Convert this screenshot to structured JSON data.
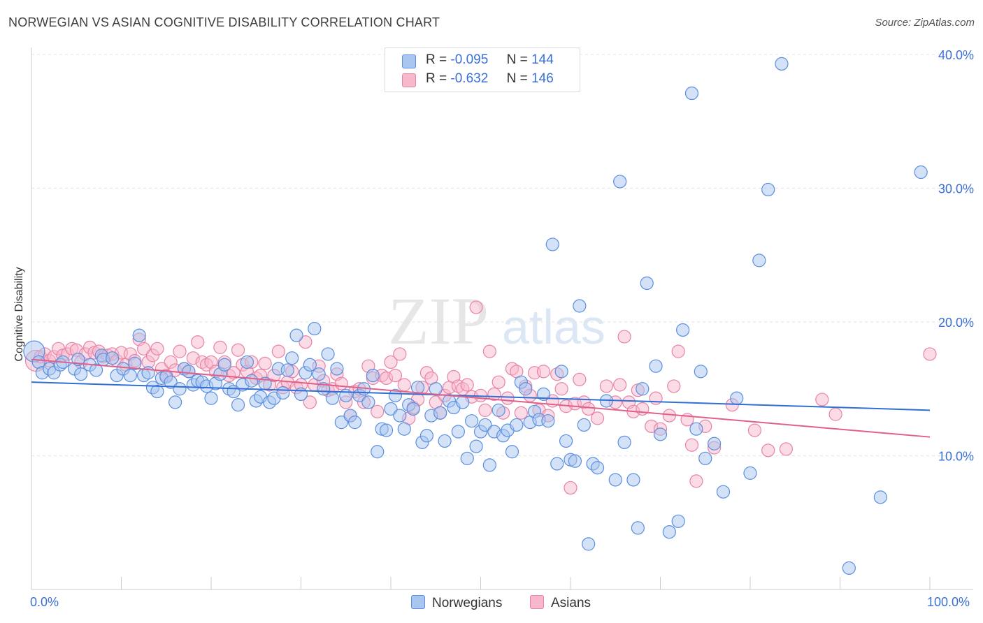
{
  "title": "NORWEGIAN VS ASIAN COGNITIVE DISABILITY CORRELATION CHART",
  "source": "Source: ZipAtlas.com",
  "legend": {
    "norwegians": {
      "r_label": "R =",
      "r_value": "-0.095",
      "n_label": "N =",
      "n_value": "144"
    },
    "asians": {
      "r_label": "R =",
      "r_value": "-0.632",
      "n_label": "N =",
      "n_value": "146"
    }
  },
  "bottom_legend": {
    "norwegians": "Norwegians",
    "asians": "Asians"
  },
  "x_tick_left": "0.0%",
  "x_tick_right": "100.0%",
  "watermark": {
    "zip": "ZIP",
    "atlas": "atlas"
  },
  "chart_data": {
    "type": "scatter",
    "title": "NORWEGIAN VS ASIAN COGNITIVE DISABILITY CORRELATION CHART",
    "xlabel": "",
    "ylabel": "Cognitive Disability",
    "xlim": [
      0,
      100
    ],
    "ylim": [
      0,
      40
    ],
    "y_ticks": [
      {
        "value": 10,
        "label": "10.0%"
      },
      {
        "value": 20,
        "label": "20.0%"
      },
      {
        "value": 30,
        "label": "30.0%"
      },
      {
        "value": 40,
        "label": "40.0%"
      }
    ],
    "grid": true,
    "legend_position": "top-center",
    "colors": {
      "norwegians_fill": "#a8c6f0",
      "norwegians_stroke": "#5b8ee0",
      "norwegians_line": "#2f6fd6",
      "asians_fill": "#f7b8cc",
      "asians_stroke": "#e883a5",
      "asians_line": "#e0608a"
    },
    "series": [
      {
        "name": "Norwegians",
        "trend": {
          "x": [
            0,
            100
          ],
          "y": [
            15.5,
            13.4
          ]
        },
        "points": [
          [
            0.3,
            17.8
          ],
          [
            0.8,
            17.0
          ],
          [
            1.2,
            16.2
          ],
          [
            2.0,
            16.5
          ],
          [
            2.5,
            16.2
          ],
          [
            3.2,
            16.8
          ],
          [
            3.5,
            17.0
          ],
          [
            4.8,
            16.5
          ],
          [
            5.2,
            17.2
          ],
          [
            5.5,
            16.1
          ],
          [
            6.5,
            16.8
          ],
          [
            7.2,
            16.4
          ],
          [
            7.8,
            17.5
          ],
          [
            8.0,
            17.2
          ],
          [
            9.0,
            17.3
          ],
          [
            9.5,
            16.0
          ],
          [
            10.2,
            16.5
          ],
          [
            11.0,
            16.0
          ],
          [
            11.5,
            16.9
          ],
          [
            12.0,
            19.0
          ],
          [
            12.5,
            16.0
          ],
          [
            13.0,
            16.2
          ],
          [
            13.5,
            15.1
          ],
          [
            14.0,
            14.8
          ],
          [
            14.5,
            15.8
          ],
          [
            15.0,
            15.9
          ],
          [
            15.5,
            15.5
          ],
          [
            16.0,
            14.0
          ],
          [
            16.5,
            15.0
          ],
          [
            17.0,
            16.5
          ],
          [
            17.5,
            16.3
          ],
          [
            18.0,
            15.3
          ],
          [
            18.5,
            15.6
          ],
          [
            19.0,
            15.5
          ],
          [
            19.5,
            15.2
          ],
          [
            20.0,
            14.3
          ],
          [
            20.5,
            15.4
          ],
          [
            21.0,
            16.1
          ],
          [
            21.5,
            16.8
          ],
          [
            22.0,
            15.0
          ],
          [
            22.5,
            14.8
          ],
          [
            23.0,
            13.8
          ],
          [
            23.5,
            15.3
          ],
          [
            24.0,
            17.0
          ],
          [
            24.5,
            15.6
          ],
          [
            25.0,
            14.1
          ],
          [
            25.5,
            14.4
          ],
          [
            26.0,
            15.4
          ],
          [
            26.5,
            14.0
          ],
          [
            27.0,
            14.3
          ],
          [
            27.5,
            16.5
          ],
          [
            28.0,
            14.7
          ],
          [
            28.5,
            16.4
          ],
          [
            29.0,
            17.3
          ],
          [
            29.5,
            19.0
          ],
          [
            30.0,
            14.6
          ],
          [
            30.5,
            16.2
          ],
          [
            31.0,
            16.8
          ],
          [
            31.5,
            19.5
          ],
          [
            32.0,
            16.1
          ],
          [
            32.5,
            15.0
          ],
          [
            33.0,
            17.6
          ],
          [
            33.5,
            14.3
          ],
          [
            34.0,
            16.5
          ],
          [
            34.5,
            12.5
          ],
          [
            35.0,
            14.5
          ],
          [
            35.5,
            13.0
          ],
          [
            36.0,
            12.5
          ],
          [
            36.5,
            14.5
          ],
          [
            37.0,
            15.0
          ],
          [
            37.5,
            14.0
          ],
          [
            38.0,
            16.0
          ],
          [
            38.5,
            10.3
          ],
          [
            39.0,
            12.0
          ],
          [
            39.5,
            11.9
          ],
          [
            40.0,
            13.5
          ],
          [
            40.5,
            14.5
          ],
          [
            41.0,
            13.0
          ],
          [
            41.5,
            12.0
          ],
          [
            42.0,
            13.8
          ],
          [
            42.5,
            13.5
          ],
          [
            43.0,
            15.1
          ],
          [
            43.5,
            11.0
          ],
          [
            44.0,
            11.5
          ],
          [
            44.5,
            13.0
          ],
          [
            45.0,
            15.0
          ],
          [
            45.5,
            13.2
          ],
          [
            46.0,
            11.1
          ],
          [
            46.5,
            14.1
          ],
          [
            47.0,
            13.6
          ],
          [
            47.5,
            11.8
          ],
          [
            48.0,
            14.0
          ],
          [
            48.5,
            9.8
          ],
          [
            49.0,
            12.6
          ],
          [
            49.5,
            10.7
          ],
          [
            50.0,
            11.8
          ],
          [
            50.5,
            12.3
          ],
          [
            51.0,
            9.3
          ],
          [
            51.5,
            11.8
          ],
          [
            52.0,
            13.4
          ],
          [
            52.5,
            11.5
          ],
          [
            53.0,
            11.9
          ],
          [
            53.5,
            10.3
          ],
          [
            54.0,
            12.3
          ],
          [
            54.5,
            15.5
          ],
          [
            55.0,
            15.0
          ],
          [
            55.5,
            12.5
          ],
          [
            56.0,
            13.3
          ],
          [
            56.5,
            12.7
          ],
          [
            57.0,
            14.6
          ],
          [
            57.5,
            12.6
          ],
          [
            58.0,
            25.8
          ],
          [
            58.5,
            9.4
          ],
          [
            59.0,
            16.3
          ],
          [
            59.5,
            11.1
          ],
          [
            60.0,
            9.7
          ],
          [
            60.5,
            9.6
          ],
          [
            61.0,
            21.2
          ],
          [
            61.5,
            12.3
          ],
          [
            62.0,
            3.4
          ],
          [
            62.5,
            9.4
          ],
          [
            63.0,
            9.1
          ],
          [
            64.0,
            14.1
          ],
          [
            65.0,
            8.2
          ],
          [
            65.5,
            30.5
          ],
          [
            66.0,
            11.0
          ],
          [
            67.0,
            8.2
          ],
          [
            67.5,
            4.6
          ],
          [
            68.0,
            15.0
          ],
          [
            68.5,
            22.9
          ],
          [
            69.5,
            16.7
          ],
          [
            70.0,
            11.6
          ],
          [
            71.0,
            4.3
          ],
          [
            72.0,
            5.1
          ],
          [
            72.5,
            19.4
          ],
          [
            73.5,
            37.1
          ],
          [
            74.0,
            12.0
          ],
          [
            74.5,
            16.3
          ],
          [
            75.0,
            9.8
          ],
          [
            76.0,
            10.9
          ],
          [
            77.0,
            7.3
          ],
          [
            78.5,
            14.3
          ],
          [
            80.0,
            8.7
          ],
          [
            81.0,
            24.6
          ],
          [
            82.0,
            29.9
          ],
          [
            83.5,
            39.3
          ],
          [
            91.0,
            1.6
          ],
          [
            94.5,
            6.9
          ],
          [
            99.0,
            31.2
          ]
        ]
      },
      {
        "name": "Asians",
        "trend": {
          "x": [
            0,
            100
          ],
          "y": [
            17.2,
            11.4
          ]
        },
        "points": [
          [
            0.5,
            17.1
          ],
          [
            1.0,
            17.4
          ],
          [
            1.5,
            17.6
          ],
          [
            2.0,
            17.1
          ],
          [
            2.5,
            17.4
          ],
          [
            3.0,
            18.0
          ],
          [
            3.5,
            17.5
          ],
          [
            4.0,
            17.6
          ],
          [
            4.5,
            18.0
          ],
          [
            5.0,
            17.9
          ],
          [
            5.5,
            17.0
          ],
          [
            6.0,
            17.6
          ],
          [
            6.5,
            18.1
          ],
          [
            7.0,
            17.7
          ],
          [
            7.5,
            17.8
          ],
          [
            8.0,
            17.4
          ],
          [
            8.5,
            17.5
          ],
          [
            9.0,
            17.6
          ],
          [
            9.5,
            17.1
          ],
          [
            10.0,
            17.7
          ],
          [
            10.5,
            16.8
          ],
          [
            11.0,
            17.6
          ],
          [
            11.5,
            17.1
          ],
          [
            12.0,
            18.7
          ],
          [
            12.5,
            18.0
          ],
          [
            13.0,
            17.0
          ],
          [
            13.5,
            17.5
          ],
          [
            14.0,
            18.0
          ],
          [
            14.5,
            16.5
          ],
          [
            15.0,
            16.0
          ],
          [
            15.5,
            17.0
          ],
          [
            16.0,
            16.4
          ],
          [
            16.5,
            17.8
          ],
          [
            17.0,
            16.5
          ],
          [
            17.5,
            16.3
          ],
          [
            18.0,
            17.3
          ],
          [
            18.5,
            18.5
          ],
          [
            19.0,
            17.0
          ],
          [
            19.5,
            16.8
          ],
          [
            20.0,
            17.0
          ],
          [
            20.5,
            16.3
          ],
          [
            21.0,
            18.1
          ],
          [
            21.5,
            17.0
          ],
          [
            22.0,
            16.0
          ],
          [
            22.5,
            16.2
          ],
          [
            23.0,
            17.9
          ],
          [
            23.5,
            16.8
          ],
          [
            24.0,
            16.3
          ],
          [
            24.5,
            17.0
          ],
          [
            25.0,
            15.8
          ],
          [
            25.5,
            16.0
          ],
          [
            26.0,
            16.9
          ],
          [
            26.5,
            15.3
          ],
          [
            27.0,
            16.0
          ],
          [
            27.5,
            17.8
          ],
          [
            28.0,
            15.1
          ],
          [
            28.5,
            15.5
          ],
          [
            29.0,
            16.3
          ],
          [
            29.5,
            15.1
          ],
          [
            30.0,
            15.3
          ],
          [
            30.5,
            18.5
          ],
          [
            31.0,
            14.0
          ],
          [
            31.5,
            15.3
          ],
          [
            32.0,
            16.7
          ],
          [
            32.5,
            15.6
          ],
          [
            33.0,
            14.9
          ],
          [
            33.5,
            15.0
          ],
          [
            34.0,
            16.1
          ],
          [
            34.5,
            15.4
          ],
          [
            35.0,
            14.0
          ],
          [
            35.5,
            13.0
          ],
          [
            36.0,
            14.8
          ],
          [
            36.5,
            15.0
          ],
          [
            37.0,
            14.0
          ],
          [
            37.5,
            16.7
          ],
          [
            38.0,
            15.8
          ],
          [
            38.5,
            13.3
          ],
          [
            39.0,
            16.0
          ],
          [
            39.5,
            15.8
          ],
          [
            40.0,
            17.0
          ],
          [
            40.5,
            16.0
          ],
          [
            41.0,
            17.6
          ],
          [
            41.5,
            15.3
          ],
          [
            42.0,
            12.8
          ],
          [
            42.5,
            13.6
          ],
          [
            43.0,
            14.2
          ],
          [
            43.5,
            15.1
          ],
          [
            44.0,
            16.2
          ],
          [
            44.5,
            15.8
          ],
          [
            45.0,
            14.0
          ],
          [
            45.5,
            13.2
          ],
          [
            46.0,
            14.5
          ],
          [
            46.5,
            15.1
          ],
          [
            47.0,
            15.9
          ],
          [
            47.5,
            15.2
          ],
          [
            48.0,
            15.0
          ],
          [
            48.5,
            15.3
          ],
          [
            49.0,
            14.4
          ],
          [
            49.5,
            21.1
          ],
          [
            50.0,
            14.5
          ],
          [
            50.5,
            13.4
          ],
          [
            51.0,
            17.8
          ],
          [
            51.5,
            14.6
          ],
          [
            52.0,
            15.5
          ],
          [
            52.5,
            13.2
          ],
          [
            53.0,
            14.3
          ],
          [
            53.5,
            16.5
          ],
          [
            54.0,
            16.3
          ],
          [
            54.5,
            13.2
          ],
          [
            55.0,
            15.2
          ],
          [
            55.5,
            14.5
          ],
          [
            56.0,
            16.2
          ],
          [
            56.5,
            13.4
          ],
          [
            57.0,
            16.3
          ],
          [
            57.5,
            13.0
          ],
          [
            58.0,
            14.1
          ],
          [
            58.5,
            16.1
          ],
          [
            59.0,
            15.0
          ],
          [
            59.5,
            13.7
          ],
          [
            60.0,
            7.6
          ],
          [
            60.5,
            13.9
          ],
          [
            61.0,
            15.7
          ],
          [
            61.5,
            14.0
          ],
          [
            62.0,
            13.5
          ],
          [
            63.0,
            12.8
          ],
          [
            64.0,
            15.2
          ],
          [
            65.0,
            14.0
          ],
          [
            65.5,
            15.3
          ],
          [
            66.0,
            18.9
          ],
          [
            66.5,
            14.0
          ],
          [
            67.0,
            13.3
          ],
          [
            67.5,
            14.9
          ],
          [
            68.0,
            13.5
          ],
          [
            69.0,
            12.2
          ],
          [
            69.5,
            14.3
          ],
          [
            70.0,
            12.0
          ],
          [
            71.0,
            13.0
          ],
          [
            71.5,
            15.2
          ],
          [
            72.0,
            17.8
          ],
          [
            73.0,
            12.7
          ],
          [
            73.5,
            10.8
          ],
          [
            74.0,
            8.1
          ],
          [
            75.0,
            12.2
          ],
          [
            76.0,
            10.6
          ],
          [
            78.0,
            13.8
          ],
          [
            80.5,
            11.9
          ],
          [
            82.0,
            10.4
          ],
          [
            84.0,
            10.5
          ],
          [
            88.0,
            14.2
          ],
          [
            89.5,
            13.1
          ],
          [
            100.0,
            17.6
          ]
        ]
      }
    ]
  }
}
